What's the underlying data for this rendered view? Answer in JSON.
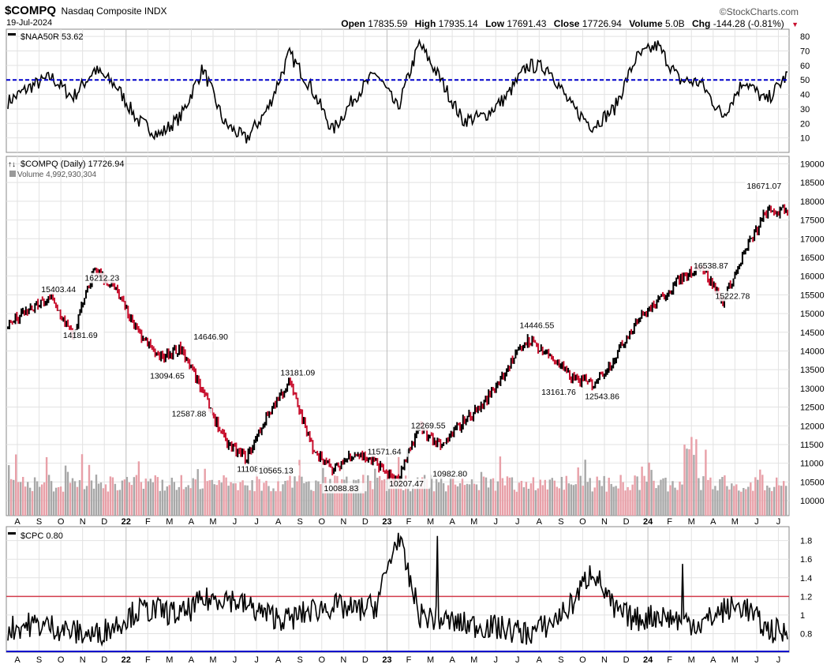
{
  "header": {
    "symbol": "$COMPQ",
    "name": "Nasdaq Composite INDX",
    "date": "19-Jul-2024",
    "brand": "©StockCharts.com",
    "quote": [
      {
        "label": "Open",
        "value": "17835.59"
      },
      {
        "label": "High",
        "value": "17935.14"
      },
      {
        "label": "Low",
        "value": "17691.43"
      },
      {
        "label": "Close",
        "value": "17726.94"
      },
      {
        "label": "Volume",
        "value": "5.0B"
      },
      {
        "label": "Chg",
        "value": "-144.28 (-0.81%)"
      }
    ]
  },
  "colors": {
    "up": "#000000",
    "down": "#c8102e",
    "ref_blue": "#0000cc",
    "ref_red": "#d23c4c",
    "grid": "#e2e2e2"
  },
  "chart_data": [
    {
      "type": "line",
      "legend": "$NAA50R 53.62",
      "ylim": [
        0,
        85
      ],
      "yticks": [
        10,
        20,
        30,
        40,
        50,
        60,
        70,
        80
      ],
      "reference_line": {
        "y": 50,
        "style": "dashed",
        "color": "#0000cc"
      },
      "x": [
        "2021-07",
        "2021-08",
        "2021-09",
        "2021-10",
        "2021-11",
        "2021-12",
        "2022-01",
        "2022-02",
        "2022-03",
        "2022-04",
        "2022-05",
        "2022-06",
        "2022-07",
        "2022-08",
        "2022-09",
        "2022-10",
        "2022-11",
        "2022-12",
        "2023-01",
        "2023-02",
        "2023-03",
        "2023-04",
        "2023-05",
        "2023-06",
        "2023-07",
        "2023-08",
        "2023-09",
        "2023-10",
        "2023-11",
        "2023-12",
        "2024-01",
        "2024-02",
        "2024-03",
        "2024-04",
        "2024-05",
        "2024-06",
        "2024-07"
      ],
      "values": [
        35,
        45,
        52,
        38,
        57,
        46,
        22,
        12,
        25,
        58,
        20,
        9,
        30,
        68,
        45,
        15,
        38,
        55,
        30,
        75,
        50,
        22,
        25,
        38,
        60,
        58,
        32,
        18,
        30,
        65,
        74,
        50,
        48,
        25,
        50,
        35,
        53.62
      ]
    },
    {
      "type": "line",
      "legend": "$COMPQ (Daily) 17726.94",
      "volume_legend": "Volume 4,992,930,304",
      "ylim": [
        9600,
        19200
      ],
      "yticks": [
        10000,
        10500,
        11000,
        11500,
        12000,
        12500,
        13000,
        13500,
        14000,
        14500,
        15000,
        15500,
        16000,
        16500,
        17000,
        17500,
        18000,
        18500,
        19000
      ],
      "x": [
        "2021-07",
        "2021-08",
        "2021-09",
        "2021-10",
        "2021-11",
        "2021-12",
        "2022-01",
        "2022-02",
        "2022-03",
        "2022-04",
        "2022-05",
        "2022-06",
        "2022-07",
        "2022-08",
        "2022-09",
        "2022-10",
        "2022-11",
        "2022-12",
        "2023-01",
        "2023-02",
        "2023-03",
        "2023-04",
        "2023-05",
        "2023-06",
        "2023-07",
        "2023-08",
        "2023-09",
        "2023-10",
        "2023-11",
        "2023-12",
        "2024-01",
        "2024-02",
        "2024-03",
        "2024-04",
        "2024-05",
        "2024-06",
        "2024-07"
      ],
      "values": [
        14700,
        15100,
        15403,
        14400,
        16212,
        15600,
        14500,
        13800,
        14100,
        12900,
        11600,
        11109,
        12300,
        13181,
        11500,
        10800,
        11300,
        11000,
        10500,
        12000,
        11400,
        12100,
        12600,
        13500,
        14300,
        13900,
        13300,
        13100,
        13800,
        14800,
        15300,
        15900,
        16300,
        15300,
        16600,
        17700,
        17727
      ],
      "annotations": [
        {
          "text": "15403.44",
          "x": "2021-09",
          "y": 15403.44
        },
        {
          "text": "16212.23",
          "x": "2021-11",
          "y": 16212.23
        },
        {
          "text": "14181.69",
          "x": "2021-10",
          "y": 14181.69
        },
        {
          "text": "14646.90",
          "x": "2022-04",
          "y": 14646.9
        },
        {
          "text": "13094.65",
          "x": "2022-02",
          "y": 13094.65
        },
        {
          "text": "12587.88",
          "x": "2022-03",
          "y": 12587.88
        },
        {
          "text": "13181.09",
          "x": "2022-08",
          "y": 13181.09
        },
        {
          "text": "11108.76",
          "x": "2022-06",
          "y": 11108.76
        },
        {
          "text": "10565.13",
          "x": "2022-07",
          "y": 10565.13
        },
        {
          "text": "11571.64",
          "x": "2022-12",
          "y": 11571.64
        },
        {
          "text": "10088.83",
          "x": "2022-10",
          "y": 10088.83
        },
        {
          "text": "12269.55",
          "x": "2023-02",
          "y": 12269.55
        },
        {
          "text": "10207.47",
          "x": "2023-01",
          "y": 10207.47
        },
        {
          "text": "10982.80",
          "x": "2023-03",
          "y": 10982.8
        },
        {
          "text": "14446.55",
          "x": "2023-07",
          "y": 14446.55
        },
        {
          "text": "13161.76",
          "x": "2023-08",
          "y": 13161.76
        },
        {
          "text": "12543.86",
          "x": "2023-10",
          "y": 12543.86
        },
        {
          "text": "16538.87",
          "x": "2024-03",
          "y": 16538.87
        },
        {
          "text": "15222.78",
          "x": "2024-04",
          "y": 15222.78
        },
        {
          "text": "18671.07",
          "x": "2024-07",
          "y": 18671.07
        }
      ]
    },
    {
      "type": "line",
      "legend": "$CPC 0.80",
      "ylim": [
        0.6,
        1.95
      ],
      "yticks": [
        0.8,
        1.0,
        1.2,
        1.4,
        1.6,
        1.8
      ],
      "reference_lines": [
        {
          "y": 1.2,
          "color": "#d23c4c"
        },
        {
          "y": 0.6,
          "color": "#0000cc"
        }
      ],
      "x": [
        "2021-07",
        "2021-08",
        "2021-09",
        "2021-10",
        "2021-11",
        "2021-12",
        "2022-01",
        "2022-02",
        "2022-03",
        "2022-04",
        "2022-05",
        "2022-06",
        "2022-07",
        "2022-08",
        "2022-09",
        "2022-10",
        "2022-11",
        "2022-12",
        "2023-01",
        "2023-02",
        "2023-03",
        "2023-04",
        "2023-05",
        "2023-06",
        "2023-07",
        "2023-08",
        "2023-09",
        "2023-10",
        "2023-11",
        "2023-12",
        "2024-01",
        "2024-02",
        "2024-03",
        "2024-04",
        "2024-05",
        "2024-06",
        "2024-07"
      ],
      "values": [
        0.85,
        0.9,
        0.88,
        0.82,
        0.78,
        0.9,
        1.05,
        1.05,
        1.0,
        1.15,
        1.2,
        1.1,
        1.0,
        0.95,
        1.05,
        1.1,
        1.05,
        1.1,
        1.85,
        1.0,
        0.95,
        0.9,
        0.88,
        0.85,
        0.8,
        0.9,
        1.1,
        1.5,
        1.05,
        0.95,
        1.0,
        0.95,
        0.9,
        1.05,
        1.1,
        0.85,
        0.8
      ]
    }
  ],
  "x_axis": {
    "labels": [
      "A",
      "S",
      "O",
      "N",
      "D",
      "22",
      "F",
      "M",
      "A",
      "M",
      "J",
      "J",
      "A",
      "S",
      "O",
      "N",
      "D",
      "23",
      "F",
      "M",
      "A",
      "M",
      "J",
      "J",
      "A",
      "S",
      "O",
      "N",
      "D",
      "24",
      "F",
      "M",
      "A",
      "M",
      "J",
      "J"
    ]
  }
}
